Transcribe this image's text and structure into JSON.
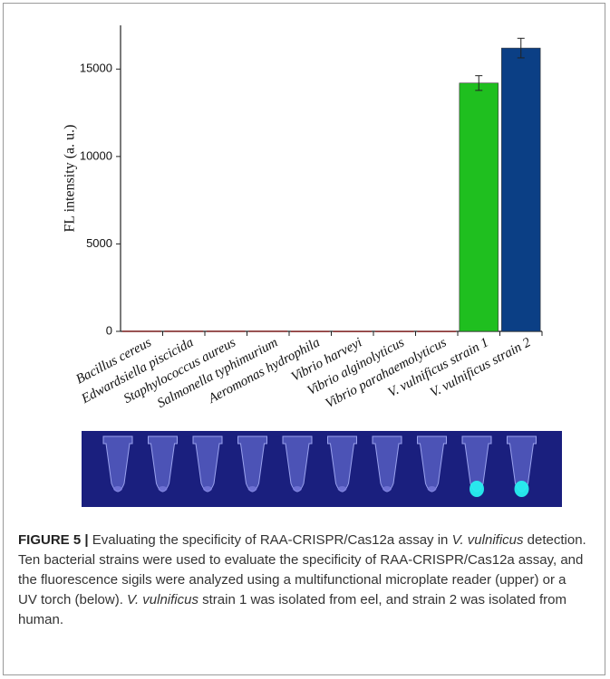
{
  "chart_data": {
    "type": "bar",
    "ylabel": "FL intensity (a. u.)",
    "categories": [
      "Bacillus cereus",
      "Edwardsiella piscicida",
      "Staphylococcus aureus",
      "Salmonella typhimurium",
      "Aeromonas hydrophila",
      "Vibrio harveyi",
      "Vibrio alginolyticus",
      "Vibrio parahaemolyticus",
      "V. vulnificus strain 1",
      "V. vulnificus strain 2"
    ],
    "values": [
      40,
      40,
      40,
      40,
      30,
      30,
      30,
      30,
      14200,
      16200
    ],
    "errors": [
      null,
      null,
      null,
      null,
      null,
      null,
      null,
      null,
      420,
      560
    ],
    "colors": [
      "#8b2c2c",
      "#8b2c2c",
      "#8b2c2c",
      "#8b2c2c",
      "#8b2c2c",
      "#8b2c2c",
      "#8b2c2c",
      "#8b2c2c",
      "#1fbf1f",
      "#0b3f85"
    ],
    "ylim": [
      0,
      17500
    ],
    "yticks": [
      0,
      5000,
      10000,
      15000
    ]
  },
  "caption": {
    "label": "FIGURE 5 |",
    "parts": [
      "Evaluating the specificity of RAA-CRISPR/Cas12a assay in",
      "V. vulnificus",
      "detection. Ten bacterial strains were used to evaluate the specificity of RAA-CRISPR/Cas12a assay, and the fluorescence sigils were analyzed using a multifunctional microplate reader (upper) or a UV torch (below).",
      "V. vulnificus",
      "strain 1 was isolated from eel, and strain 2 was isolated from human."
    ]
  }
}
